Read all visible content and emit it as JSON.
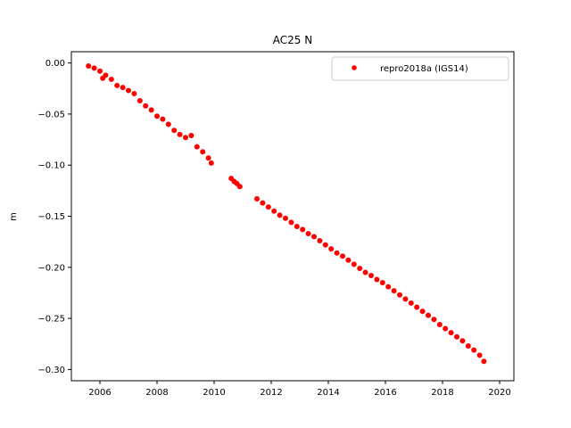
{
  "chart_data": {
    "type": "scatter",
    "title": "AC25 N",
    "xlabel": "",
    "ylabel": "m",
    "xlim": [
      2005.0,
      2020.5
    ],
    "ylim": [
      -0.311,
      0.011
    ],
    "xticks": [
      2006,
      2008,
      2010,
      2012,
      2014,
      2016,
      2018,
      2020
    ],
    "xtick_labels": [
      "2006",
      "2008",
      "2010",
      "2012",
      "2014",
      "2016",
      "2018",
      "2020"
    ],
    "yticks": [
      0.0,
      -0.05,
      -0.1,
      -0.15,
      -0.2,
      -0.25,
      -0.3
    ],
    "ytick_labels": [
      "0.00",
      "−0.05",
      "−0.10",
      "−0.15",
      "−0.20",
      "−0.25",
      "−0.30"
    ],
    "grid": false,
    "legend_position": "top-right",
    "series": [
      {
        "name": "repro2018a (IGS14)",
        "color": "#ff0000",
        "marker": "circle",
        "x": [
          2005.6,
          2005.8,
          2006.0,
          2006.1,
          2006.2,
          2006.4,
          2006.6,
          2006.8,
          2007.0,
          2007.2,
          2007.4,
          2007.6,
          2007.8,
          2008.0,
          2008.2,
          2008.4,
          2008.6,
          2008.8,
          2009.0,
          2009.2,
          2009.4,
          2009.6,
          2009.8,
          2009.9,
          2010.6,
          2010.7,
          2010.8,
          2010.9,
          2011.5,
          2011.7,
          2011.9,
          2012.1,
          2012.3,
          2012.5,
          2012.7,
          2012.9,
          2013.1,
          2013.3,
          2013.5,
          2013.7,
          2013.9,
          2014.1,
          2014.3,
          2014.5,
          2014.7,
          2014.9,
          2015.1,
          2015.3,
          2015.5,
          2015.7,
          2015.9,
          2016.1,
          2016.3,
          2016.5,
          2016.7,
          2016.9,
          2017.1,
          2017.3,
          2017.5,
          2017.7,
          2017.9,
          2018.1,
          2018.3,
          2018.5,
          2018.7,
          2018.9,
          2019.1,
          2019.3,
          2019.45
        ],
        "y": [
          -0.003,
          -0.005,
          -0.008,
          -0.015,
          -0.012,
          -0.016,
          -0.022,
          -0.024,
          -0.027,
          -0.03,
          -0.037,
          -0.042,
          -0.046,
          -0.052,
          -0.055,
          -0.06,
          -0.066,
          -0.07,
          -0.073,
          -0.071,
          -0.082,
          -0.087,
          -0.093,
          -0.098,
          -0.113,
          -0.116,
          -0.118,
          -0.121,
          -0.133,
          -0.137,
          -0.141,
          -0.145,
          -0.149,
          -0.152,
          -0.156,
          -0.16,
          -0.163,
          -0.167,
          -0.17,
          -0.174,
          -0.178,
          -0.182,
          -0.186,
          -0.189,
          -0.193,
          -0.197,
          -0.201,
          -0.205,
          -0.208,
          -0.212,
          -0.215,
          -0.219,
          -0.223,
          -0.227,
          -0.231,
          -0.235,
          -0.239,
          -0.243,
          -0.247,
          -0.251,
          -0.256,
          -0.26,
          -0.264,
          -0.268,
          -0.272,
          -0.277,
          -0.281,
          -0.286,
          -0.292
        ]
      }
    ]
  }
}
